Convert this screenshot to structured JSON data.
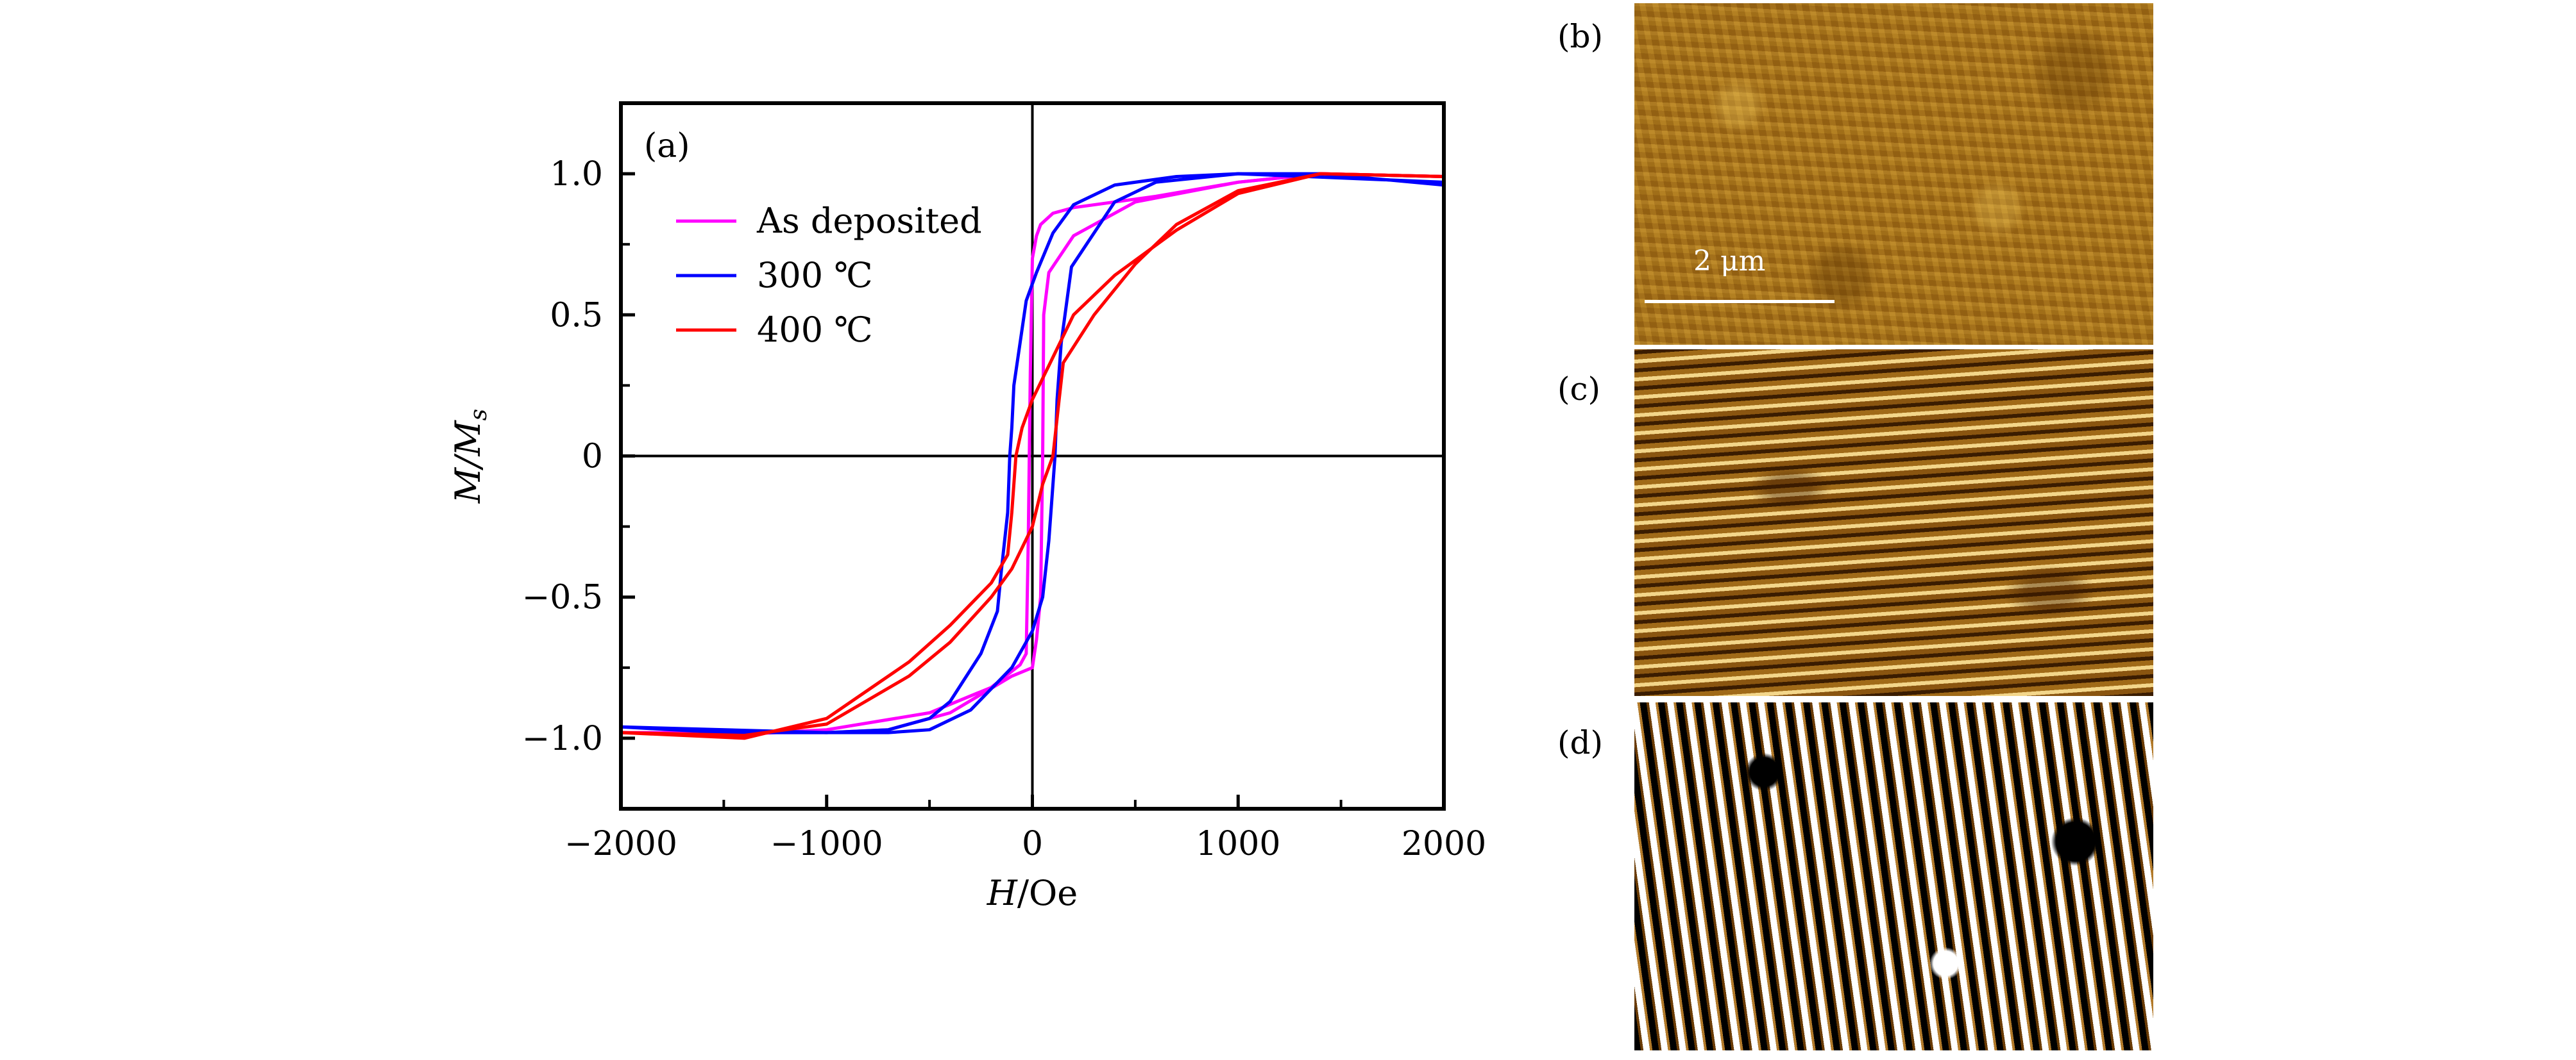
{
  "chart_data": {
    "type": "line",
    "panel_label": "(a)",
    "xlabel_var": "H",
    "xlabel_unit": "/Oe",
    "ylabel_var": "M",
    "ylabel_sub": "s",
    "xlim": [
      -2000,
      2000
    ],
    "ylim": [
      -1.25,
      1.25
    ],
    "xticks": [
      -2000,
      -1000,
      0,
      1000,
      2000
    ],
    "xtick_labels": [
      "−2000",
      "−1000",
      "0",
      "1000",
      "2000"
    ],
    "xminor": [
      -1500,
      -500,
      500,
      1500
    ],
    "yticks": [
      -1.0,
      -0.5,
      0,
      0.5,
      1.0
    ],
    "ytick_labels": [
      "−1.0",
      "−0.5",
      "0",
      "0.5",
      "1.0"
    ],
    "yminor": [
      -0.75,
      -0.25,
      0.25,
      0.75
    ],
    "legend_position": "top-left",
    "series": [
      {
        "name": "As deposited",
        "color": "#ff00ff",
        "branches": [
          [
            [
              2000,
              0.99
            ],
            [
              1400,
              1.0
            ],
            [
              1000,
              0.97
            ],
            [
              600,
              0.92
            ],
            [
              200,
              0.88
            ],
            [
              100,
              0.86
            ],
            [
              40,
              0.82
            ],
            [
              20,
              0.78
            ],
            [
              0,
              0.7
            ],
            [
              -10,
              0.3
            ],
            [
              -20,
              -0.3
            ],
            [
              -30,
              -0.7
            ],
            [
              -60,
              -0.74
            ],
            [
              -200,
              -0.82
            ],
            [
              -500,
              -0.91
            ],
            [
              -1000,
              -0.97
            ],
            [
              -1500,
              -0.99
            ],
            [
              -2000,
              -0.98
            ]
          ],
          [
            [
              -2000,
              -0.98
            ],
            [
              -1500,
              -0.98
            ],
            [
              -1000,
              -0.98
            ],
            [
              -700,
              -0.97
            ],
            [
              -400,
              -0.91
            ],
            [
              -100,
              -0.78
            ],
            [
              0,
              -0.75
            ],
            [
              20,
              -0.65
            ],
            [
              40,
              -0.5
            ],
            [
              50,
              0
            ],
            [
              55,
              0.5
            ],
            [
              80,
              0.65
            ],
            [
              200,
              0.78
            ],
            [
              500,
              0.9
            ],
            [
              1000,
              0.97
            ],
            [
              1400,
              1.0
            ],
            [
              2000,
              0.99
            ]
          ]
        ]
      },
      {
        "name": "300 ℃",
        "color": "#0000ff",
        "branches": [
          [
            [
              2000,
              0.96
            ],
            [
              1400,
              1.0
            ],
            [
              1000,
              1.0
            ],
            [
              700,
              0.99
            ],
            [
              400,
              0.96
            ],
            [
              200,
              0.89
            ],
            [
              100,
              0.79
            ],
            [
              20,
              0.65
            ],
            [
              -30,
              0.55
            ],
            [
              -60,
              0.4
            ],
            [
              -90,
              0.25
            ],
            [
              -100,
              0.1
            ],
            [
              -110,
              0
            ],
            [
              -120,
              -0.2
            ],
            [
              -150,
              -0.4
            ],
            [
              -170,
              -0.55
            ],
            [
              -250,
              -0.7
            ],
            [
              -400,
              -0.87
            ],
            [
              -500,
              -0.93
            ],
            [
              -700,
              -0.97
            ],
            [
              -1000,
              -0.98
            ],
            [
              -2000,
              -0.96
            ]
          ],
          [
            [
              -2000,
              -0.96
            ],
            [
              -1500,
              -0.98
            ],
            [
              -700,
              -0.98
            ],
            [
              -500,
              -0.97
            ],
            [
              -300,
              -0.9
            ],
            [
              -100,
              -0.75
            ],
            [
              0,
              -0.62
            ],
            [
              50,
              -0.5
            ],
            [
              80,
              -0.3
            ],
            [
              100,
              -0.1
            ],
            [
              110,
              0
            ],
            [
              120,
              0.2
            ],
            [
              140,
              0.4
            ],
            [
              190,
              0.67
            ],
            [
              400,
              0.9
            ],
            [
              600,
              0.97
            ],
            [
              1000,
              1.0
            ],
            [
              2000,
              0.97
            ]
          ]
        ]
      },
      {
        "name": "400 ℃",
        "color": "#ff0000",
        "branches": [
          [
            [
              2000,
              0.99
            ],
            [
              1400,
              1.0
            ],
            [
              1000,
              0.93
            ],
            [
              700,
              0.8
            ],
            [
              400,
              0.64
            ],
            [
              200,
              0.5
            ],
            [
              100,
              0.35
            ],
            [
              0,
              0.2
            ],
            [
              -50,
              0.1
            ],
            [
              -80,
              0
            ],
            [
              -100,
              -0.2
            ],
            [
              -120,
              -0.35
            ],
            [
              -200,
              -0.45
            ],
            [
              -400,
              -0.6
            ],
            [
              -600,
              -0.73
            ],
            [
              -1000,
              -0.93
            ],
            [
              -1400,
              -1.0
            ],
            [
              -2000,
              -0.98
            ]
          ],
          [
            [
              -2000,
              -0.98
            ],
            [
              -1400,
              -0.99
            ],
            [
              -1000,
              -0.95
            ],
            [
              -600,
              -0.78
            ],
            [
              -400,
              -0.66
            ],
            [
              -200,
              -0.5
            ],
            [
              -100,
              -0.4
            ],
            [
              0,
              -0.25
            ],
            [
              50,
              -0.1
            ],
            [
              100,
              0
            ],
            [
              130,
              0.2
            ],
            [
              150,
              0.33
            ],
            [
              300,
              0.5
            ],
            [
              500,
              0.68
            ],
            [
              700,
              0.82
            ],
            [
              1000,
              0.94
            ],
            [
              1400,
              1.0
            ],
            [
              2000,
              0.99
            ]
          ]
        ]
      }
    ]
  },
  "images": {
    "b": {
      "label": "(b)",
      "scale_bar": "2 μm"
    },
    "c": {
      "label": "(c)"
    },
    "d": {
      "label": "(d)"
    }
  }
}
